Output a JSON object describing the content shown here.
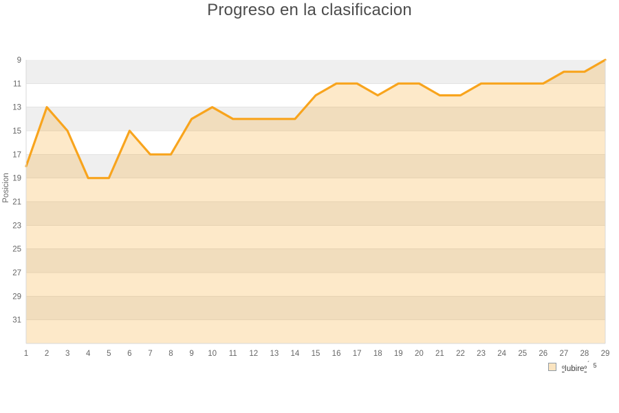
{
  "chart_data": {
    "type": "line",
    "title": "Progreso en la clasificacion",
    "xlabel": "",
    "ylabel": "Posicion",
    "x": [
      1,
      2,
      3,
      4,
      5,
      6,
      7,
      8,
      9,
      10,
      11,
      12,
      13,
      14,
      15,
      16,
      17,
      18,
      19,
      20,
      21,
      22,
      23,
      24,
      25,
      26,
      27,
      28,
      29
    ],
    "series": [
      {
        "name": "ºIubireº´5",
        "values": [
          18,
          13,
          15,
          19,
          19,
          15,
          17,
          17,
          14,
          13,
          14,
          14,
          14,
          14,
          12,
          11,
          11,
          12,
          11,
          11,
          12,
          12,
          11,
          11,
          11,
          11,
          10,
          10,
          9
        ]
      }
    ],
    "y_axis": {
      "min": 9,
      "max": 33,
      "tick_step": 2,
      "ticks": [
        9,
        11,
        13,
        15,
        17,
        19,
        21,
        23,
        25,
        27,
        29,
        31
      ],
      "inverted": true
    },
    "x_axis": {
      "min": 1,
      "max": 29
    },
    "grid": "alternating-horizontal-bands",
    "legend_position": "bottom-right",
    "colors": {
      "line": "#F8A41D",
      "area_fill": "rgba(247,164,28,0.24)",
      "band_gray": "#EFEFEF",
      "band_white": "#FFFFFF",
      "gridline": "#E3E3E3",
      "axis_border": "#D9D9D9",
      "tick_label": "#666666",
      "title": "#4C4C4C"
    }
  },
  "legend": {
    "prefix": "º",
    "name": "Iubire",
    "suffix": "º",
    "accent": "´",
    "sup": "5"
  }
}
